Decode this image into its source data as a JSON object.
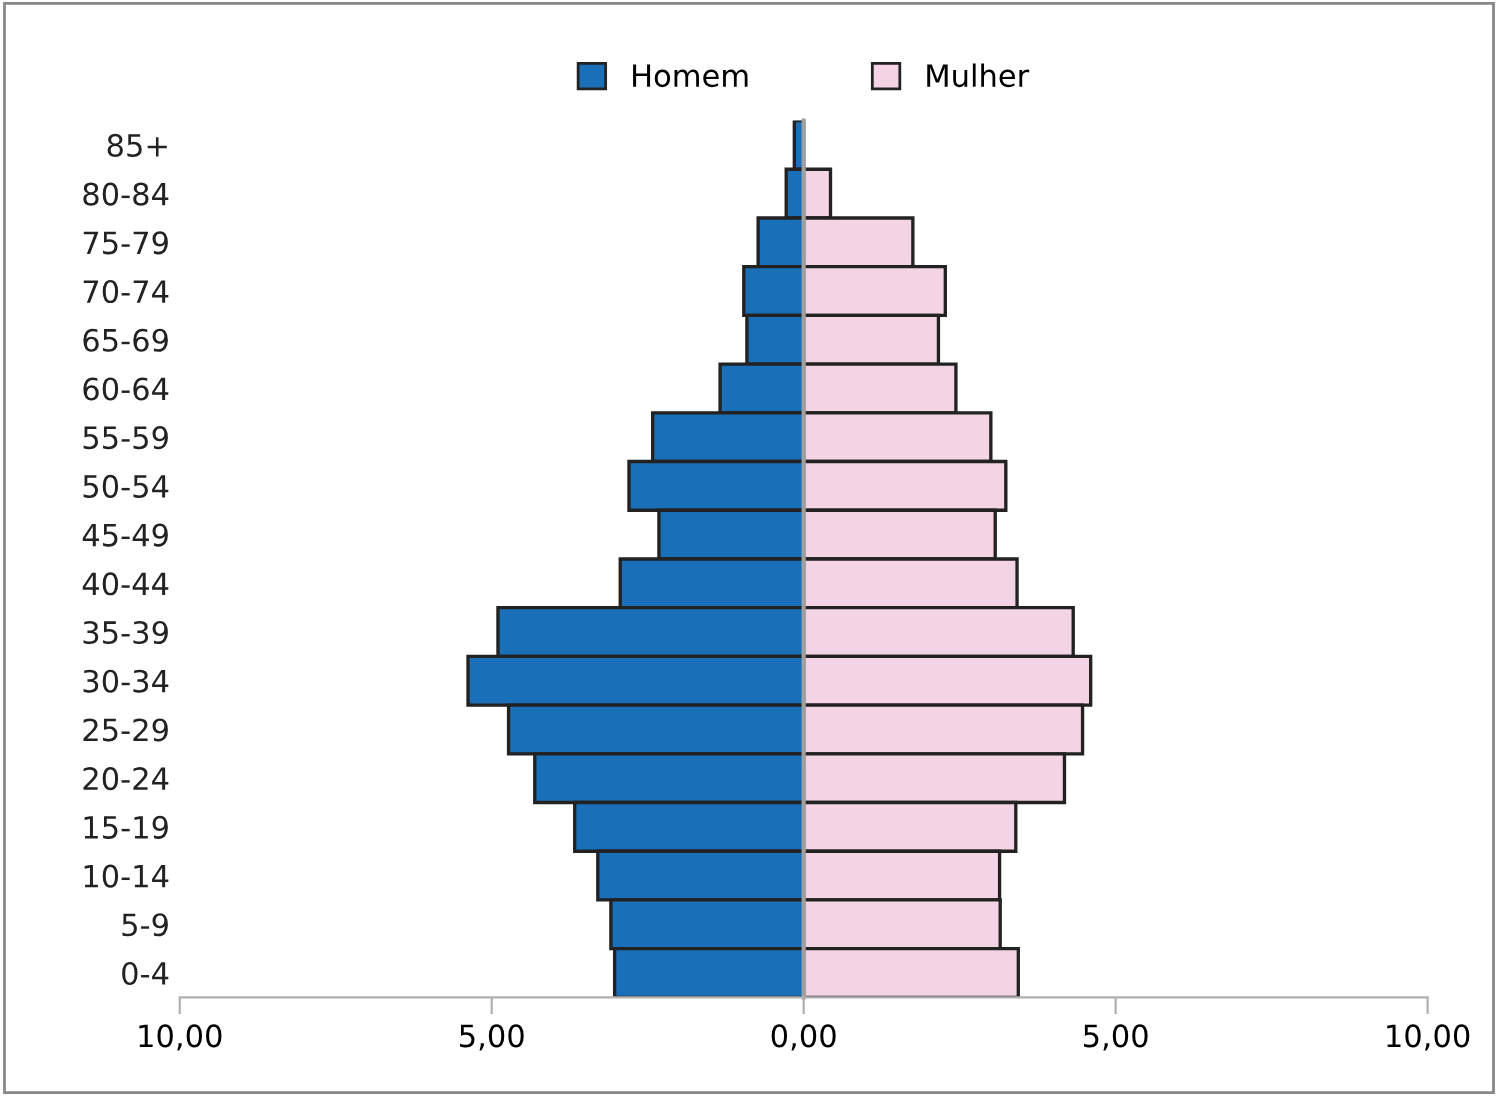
{
  "chart_data": {
    "type": "bar",
    "orientation": "horizontal",
    "categories": [
      "85+",
      "80-84",
      "75-79",
      "70-74",
      "65-69",
      "60-64",
      "55-59",
      "50-54",
      "45-49",
      "40-44",
      "35-39",
      "30-34",
      "25-29",
      "20-24",
      "15-19",
      "10-14",
      "5-9",
      "0-4"
    ],
    "series": [
      {
        "name": "Homem",
        "color": "#1a70b8",
        "values": [
          -0.15,
          -0.28,
          -0.73,
          -0.96,
          -0.91,
          -1.34,
          -2.42,
          -2.8,
          -2.32,
          -2.94,
          -4.9,
          -5.38,
          -4.73,
          -4.31,
          -3.67,
          -3.3,
          -3.09,
          -3.03
        ]
      },
      {
        "name": "Mulher",
        "color": "#f4d4e4",
        "values": [
          null,
          0.43,
          1.75,
          2.27,
          2.16,
          2.44,
          3.0,
          3.24,
          3.07,
          3.42,
          4.32,
          4.6,
          4.47,
          4.18,
          3.4,
          3.14,
          3.15,
          3.44
        ]
      }
    ],
    "xlim": [
      -10,
      10
    ],
    "xticks": [
      {
        "value": -10,
        "label": "10,00"
      },
      {
        "value": -5,
        "label": "5,00"
      },
      {
        "value": 0,
        "label": "0,00"
      },
      {
        "value": 5,
        "label": "5,00"
      },
      {
        "value": 10,
        "label": "10,00"
      }
    ],
    "stacked": true,
    "legend": "top"
  }
}
